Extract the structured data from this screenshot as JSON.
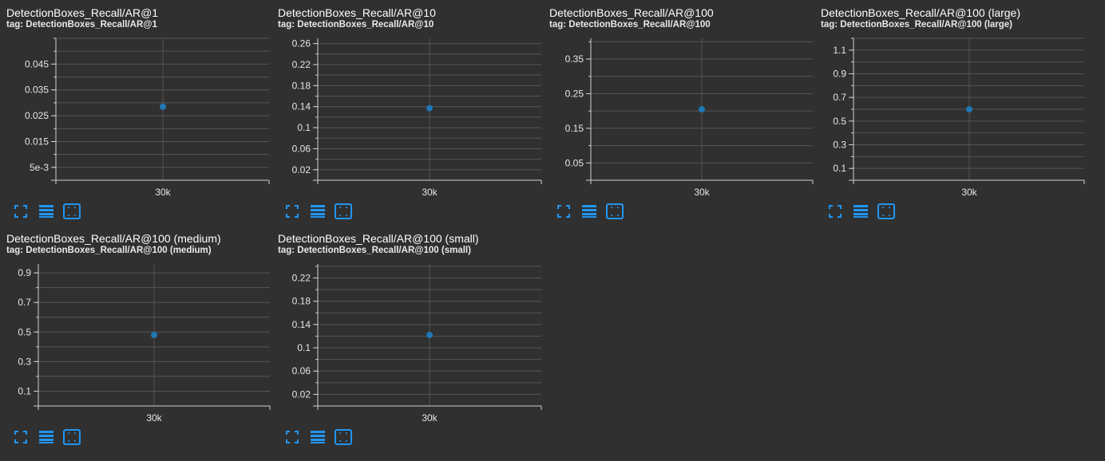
{
  "colors": {
    "background": "#303030",
    "grid": "#555555",
    "axis": "#d0d0d0",
    "point": "#1f77b4",
    "icon": "#2196f3"
  },
  "toolbar": {
    "icons": [
      "fullscreen-icon",
      "toggle-log-scale-icon",
      "fit-domain-icon"
    ]
  },
  "cards": [
    {
      "title": "DetectionBoxes_Recall/AR@1",
      "tag": "tag: DetectionBoxes_Recall/AR@1",
      "chart_data": {
        "type": "scatter",
        "x": [
          30000
        ],
        "y": [
          0.0285
        ],
        "xtick": "30k",
        "ylim": [
          0,
          0.055
        ],
        "yticks": [
          0.005,
          0.015,
          0.025,
          0.035,
          0.045
        ],
        "ytick_labels": [
          "5e-3",
          "0.015",
          "0.025",
          "0.035",
          "0.045"
        ],
        "grid": true
      }
    },
    {
      "title": "DetectionBoxes_Recall/AR@10",
      "tag": "tag: DetectionBoxes_Recall/AR@10",
      "chart_data": {
        "type": "scatter",
        "x": [
          30000
        ],
        "y": [
          0.137
        ],
        "xtick": "30k",
        "ylim": [
          0,
          0.27
        ],
        "yticks": [
          0.02,
          0.06,
          0.1,
          0.14,
          0.18,
          0.22,
          0.26
        ],
        "ytick_labels": [
          "0.02",
          "0.06",
          "0.1",
          "0.14",
          "0.18",
          "0.22",
          "0.26"
        ],
        "grid": true
      }
    },
    {
      "title": "DetectionBoxes_Recall/AR@100",
      "tag": "tag: DetectionBoxes_Recall/AR@100",
      "chart_data": {
        "type": "scatter",
        "x": [
          30000
        ],
        "y": [
          0.205
        ],
        "xtick": "30k",
        "ylim": [
          0,
          0.41
        ],
        "yticks": [
          0.05,
          0.15,
          0.25,
          0.35
        ],
        "ytick_labels": [
          "0.05",
          "0.15",
          "0.25",
          "0.35"
        ],
        "grid": true
      }
    },
    {
      "title": "DetectionBoxes_Recall/AR@100 (large)",
      "tag": "tag: DetectionBoxes_Recall/AR@100 (large)",
      "chart_data": {
        "type": "scatter",
        "x": [
          30000
        ],
        "y": [
          0.6
        ],
        "xtick": "30k",
        "ylim": [
          0,
          1.2
        ],
        "yticks": [
          0.1,
          0.3,
          0.5,
          0.7,
          0.9,
          1.1
        ],
        "ytick_labels": [
          "0.1",
          "0.3",
          "0.5",
          "0.7",
          "0.9",
          "1.1"
        ],
        "grid": true
      }
    },
    {
      "title": "DetectionBoxes_Recall/AR@100 (medium)",
      "tag": "tag: DetectionBoxes_Recall/AR@100 (medium)",
      "chart_data": {
        "type": "scatter",
        "x": [
          30000
        ],
        "y": [
          0.48
        ],
        "xtick": "30k",
        "ylim": [
          0,
          0.96
        ],
        "yticks": [
          0.1,
          0.3,
          0.5,
          0.7,
          0.9
        ],
        "ytick_labels": [
          "0.1",
          "0.3",
          "0.5",
          "0.7",
          "0.9"
        ],
        "grid": true
      }
    },
    {
      "title": "DetectionBoxes_Recall/AR@100 (small)",
      "tag": "tag: DetectionBoxes_Recall/AR@100 (small)",
      "chart_data": {
        "type": "scatter",
        "x": [
          30000
        ],
        "y": [
          0.122
        ],
        "xtick": "30k",
        "ylim": [
          0,
          0.244
        ],
        "yticks": [
          0.02,
          0.06,
          0.1,
          0.14,
          0.18,
          0.22
        ],
        "ytick_labels": [
          "0.02",
          "0.06",
          "0.1",
          "0.14",
          "0.18",
          "0.22"
        ],
        "grid": true
      }
    }
  ]
}
